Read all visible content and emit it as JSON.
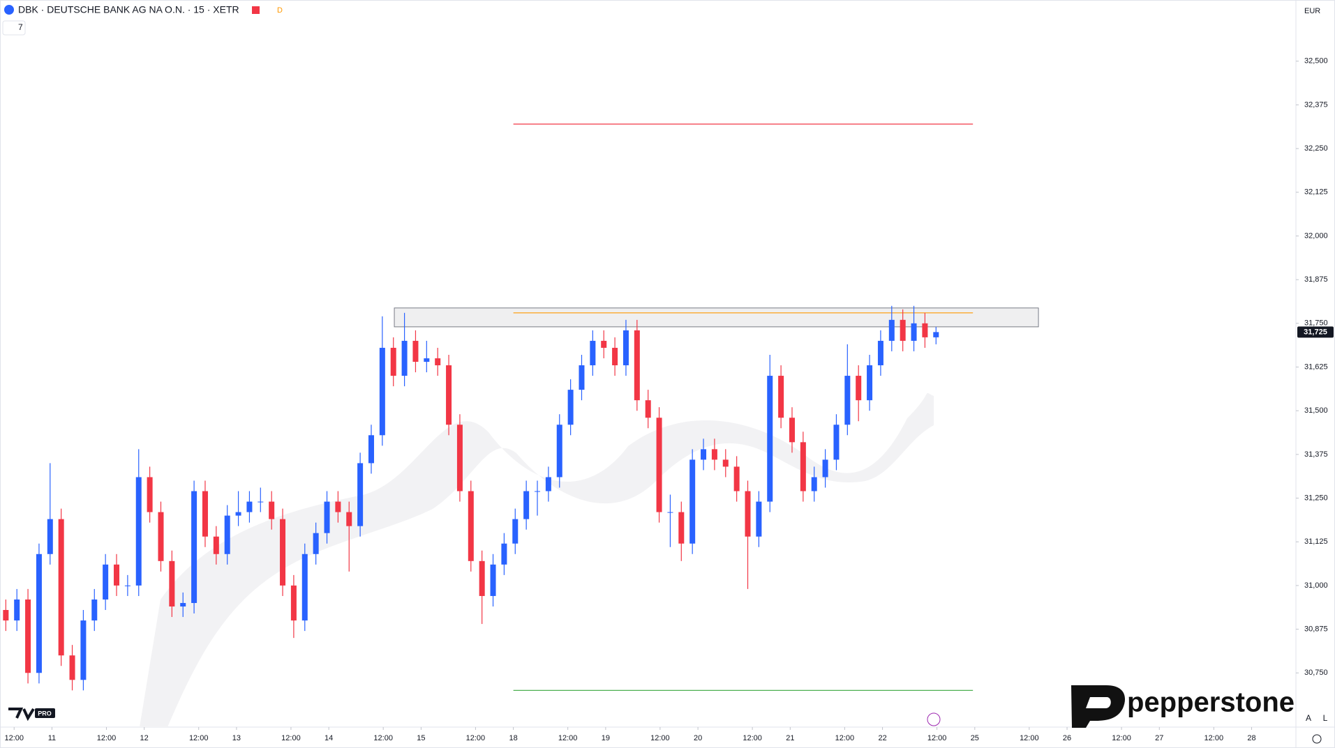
{
  "header": {
    "symbol": "DBK · DEUTSCHE BANK AG NA O.N. · 15 · XETR",
    "badge": "D",
    "indicator_count": "7",
    "currency": "EUR"
  },
  "footer": {
    "auto": "A",
    "log": "L",
    "tv_badge": "PRO",
    "brand": "pepperstone"
  },
  "chart_data": {
    "type": "candlestick",
    "up_color": "#2962ff",
    "down_color": "#f23645",
    "grid": false,
    "x": [
      -0.5,
      -0.38,
      -0.26,
      -0.14,
      -0.02,
      0.1,
      0.22,
      0.34,
      0.46,
      0.58,
      0.7,
      0.82,
      0.94,
      1.06,
      1.18,
      1.3,
      1.42,
      1.54,
      1.66,
      1.78,
      1.9,
      2.02,
      2.14,
      2.26,
      2.38,
      2.5,
      2.62,
      2.74,
      2.86,
      2.98,
      3.1,
      3.22,
      3.34,
      3.46,
      3.58,
      3.7,
      3.82,
      3.94,
      4.06,
      4.18,
      4.3,
      4.42,
      4.54,
      4.66,
      4.78,
      4.9,
      5.02,
      5.14,
      5.26,
      5.38,
      5.5,
      5.62,
      5.74,
      5.86,
      5.98,
      6.1,
      6.22,
      6.34,
      6.46,
      6.58,
      6.7,
      6.82,
      6.94,
      7.06,
      7.18,
      7.3,
      7.42,
      7.54,
      7.66,
      7.78,
      7.9,
      8.02,
      8.14,
      8.26,
      8.38,
      8.5,
      8.62,
      8.74,
      8.86,
      8.98,
      9.1,
      9.22,
      9.34,
      9.46,
      9.58
    ],
    "open": [
      30.93,
      30.9,
      30.96,
      30.75,
      31.09,
      31.19,
      30.8,
      30.73,
      30.9,
      30.96,
      31.06,
      31.0,
      31.0,
      31.31,
      31.21,
      31.07,
      30.94,
      30.95,
      31.27,
      31.14,
      31.09,
      31.2,
      31.21,
      31.24,
      31.24,
      31.19,
      31.0,
      30.9,
      31.09,
      31.15,
      31.24,
      31.21,
      31.17,
      31.35,
      31.43,
      31.68,
      31.6,
      31.7,
      31.64,
      31.65,
      31.63,
      31.46,
      31.27,
      31.07,
      30.97,
      31.06,
      31.12,
      31.19,
      31.27,
      31.27,
      31.31,
      31.46,
      31.56,
      31.63,
      31.7,
      31.68,
      31.63,
      31.73,
      31.53,
      31.48,
      31.21,
      31.21,
      31.12,
      31.36,
      31.39,
      31.36,
      31.34,
      31.27,
      31.14,
      31.24,
      31.6,
      31.48,
      31.41,
      31.27,
      31.31,
      31.36,
      31.46,
      31.6,
      31.53,
      31.63,
      31.7,
      31.76,
      31.7,
      31.75,
      31.71
    ],
    "high": [
      30.96,
      30.99,
      30.99,
      31.12,
      31.35,
      31.22,
      30.83,
      30.93,
      30.99,
      31.09,
      31.09,
      31.03,
      31.39,
      31.34,
      31.24,
      31.1,
      30.98,
      31.3,
      31.3,
      31.17,
      31.23,
      31.27,
      31.27,
      31.28,
      31.27,
      31.22,
      31.03,
      31.12,
      31.18,
      31.27,
      31.27,
      31.24,
      31.38,
      31.46,
      31.77,
      31.71,
      31.78,
      31.73,
      31.7,
      31.68,
      31.66,
      31.49,
      31.3,
      31.1,
      31.09,
      31.15,
      31.22,
      31.3,
      31.3,
      31.34,
      31.49,
      31.59,
      31.66,
      31.73,
      31.73,
      31.71,
      31.76,
      31.76,
      31.56,
      31.51,
      31.26,
      31.24,
      31.39,
      31.42,
      31.42,
      31.39,
      31.37,
      31.3,
      31.27,
      31.66,
      31.63,
      31.51,
      31.44,
      31.34,
      31.39,
      31.49,
      31.69,
      31.63,
      31.66,
      31.73,
      31.8,
      31.79,
      31.8,
      31.78,
      31.74
    ],
    "low": [
      30.87,
      30.87,
      30.72,
      30.72,
      31.06,
      30.77,
      30.7,
      30.7,
      30.87,
      30.93,
      30.97,
      30.97,
      30.97,
      31.18,
      31.04,
      30.91,
      30.91,
      30.92,
      31.11,
      31.06,
      31.06,
      31.17,
      31.18,
      31.21,
      31.16,
      30.97,
      30.85,
      30.87,
      31.06,
      31.12,
      31.18,
      31.04,
      31.14,
      31.32,
      31.4,
      31.57,
      31.57,
      31.61,
      31.61,
      31.6,
      31.43,
      31.24,
      31.04,
      30.89,
      30.94,
      31.03,
      31.09,
      31.16,
      31.2,
      31.24,
      31.28,
      31.43,
      31.53,
      31.6,
      31.65,
      31.6,
      31.6,
      31.5,
      31.45,
      31.18,
      31.11,
      31.07,
      31.09,
      31.33,
      31.33,
      31.31,
      31.24,
      30.99,
      31.11,
      31.21,
      31.45,
      31.38,
      31.24,
      31.24,
      31.28,
      31.33,
      31.43,
      31.47,
      31.5,
      31.6,
      31.67,
      31.67,
      31.67,
      31.68,
      31.69
    ],
    "close": [
      30.9,
      30.96,
      30.75,
      31.09,
      31.19,
      30.8,
      30.73,
      30.9,
      30.96,
      31.06,
      31.0,
      31.0,
      31.31,
      31.21,
      31.07,
      30.94,
      30.95,
      31.27,
      31.14,
      31.09,
      31.2,
      31.21,
      31.24,
      31.24,
      31.19,
      31.0,
      30.9,
      31.09,
      31.15,
      31.24,
      31.21,
      31.17,
      31.35,
      31.43,
      31.68,
      31.6,
      31.7,
      31.64,
      31.65,
      31.63,
      31.46,
      31.27,
      31.07,
      30.97,
      31.06,
      31.12,
      31.19,
      31.27,
      31.27,
      31.31,
      31.46,
      31.56,
      31.63,
      31.7,
      31.68,
      31.63,
      31.73,
      31.53,
      31.48,
      31.21,
      31.21,
      31.12,
      31.36,
      31.39,
      31.36,
      31.34,
      31.27,
      31.14,
      31.24,
      31.6,
      31.48,
      31.41,
      31.27,
      31.31,
      31.36,
      31.46,
      31.6,
      31.53,
      31.63,
      31.7,
      31.76,
      31.7,
      31.75,
      31.71,
      31.725
    ],
    "last_price": {
      "value": 31.725,
      "label": "31,725"
    },
    "levels": [
      {
        "color": "#f23645",
        "value": 32.32,
        "x": [
          5.0,
          9.98
        ]
      },
      {
        "color": "#ff9800",
        "value": 31.78,
        "x": [
          5.0,
          9.98
        ]
      },
      {
        "color": "#4caf50",
        "value": 30.7,
        "x": [
          5.0,
          9.98
        ]
      }
    ],
    "zone": {
      "top": 31.794,
      "bottom": 31.74,
      "x": [
        3.71,
        10.69
      ]
    },
    "xlim": [
      -0.563,
      13.48
    ],
    "ylim": [
      30.595,
      32.675
    ],
    "yticks": [
      {
        "value": 30.75,
        "label": "30,750"
      },
      {
        "value": 30.875,
        "label": "30,875"
      },
      {
        "value": 31,
        "label": "31,000"
      },
      {
        "value": 31.125,
        "label": "31,125"
      },
      {
        "value": 31.25,
        "label": "31,250"
      },
      {
        "value": 31.375,
        "label": "31,375"
      },
      {
        "value": 31.5,
        "label": "31,500"
      },
      {
        "value": 31.625,
        "label": "31,625"
      },
      {
        "value": 31.75,
        "label": "31,750"
      },
      {
        "value": 31.875,
        "label": "31,875"
      },
      {
        "value": 32,
        "label": "32,000"
      },
      {
        "value": 32.125,
        "label": "32,125"
      },
      {
        "value": 32.25,
        "label": "32,250"
      },
      {
        "value": 32.375,
        "label": "32,375"
      },
      {
        "value": 32.5,
        "label": "32,500"
      }
    ],
    "xticks": [
      {
        "value": -0.41,
        "label": "12:00"
      },
      {
        "value": 0,
        "label": "11"
      },
      {
        "value": 0.59,
        "label": "12:00"
      },
      {
        "value": 1,
        "label": "12"
      },
      {
        "value": 1.59,
        "label": "12:00"
      },
      {
        "value": 2,
        "label": "13"
      },
      {
        "value": 2.59,
        "label": "12:00"
      },
      {
        "value": 3,
        "label": "14"
      },
      {
        "value": 3.59,
        "label": "12:00"
      },
      {
        "value": 4,
        "label": "15"
      },
      {
        "value": 4.59,
        "label": "12:00"
      },
      {
        "value": 5,
        "label": "18"
      },
      {
        "value": 5.59,
        "label": "12:00"
      },
      {
        "value": 6,
        "label": "19"
      },
      {
        "value": 6.59,
        "label": "12:00"
      },
      {
        "value": 7,
        "label": "20"
      },
      {
        "value": 7.59,
        "label": "12:00"
      },
      {
        "value": 8,
        "label": "21"
      },
      {
        "value": 8.59,
        "label": "12:00"
      },
      {
        "value": 9,
        "label": "22"
      },
      {
        "value": 9.59,
        "label": "12:00"
      },
      {
        "value": 10,
        "label": "25"
      },
      {
        "value": 10.59,
        "label": "12:00"
      },
      {
        "value": 11,
        "label": "26"
      },
      {
        "value": 11.59,
        "label": "12:00"
      },
      {
        "value": 12,
        "label": "27"
      },
      {
        "value": 12.59,
        "label": "12:00"
      },
      {
        "value": 13,
        "label": "28"
      }
    ]
  }
}
